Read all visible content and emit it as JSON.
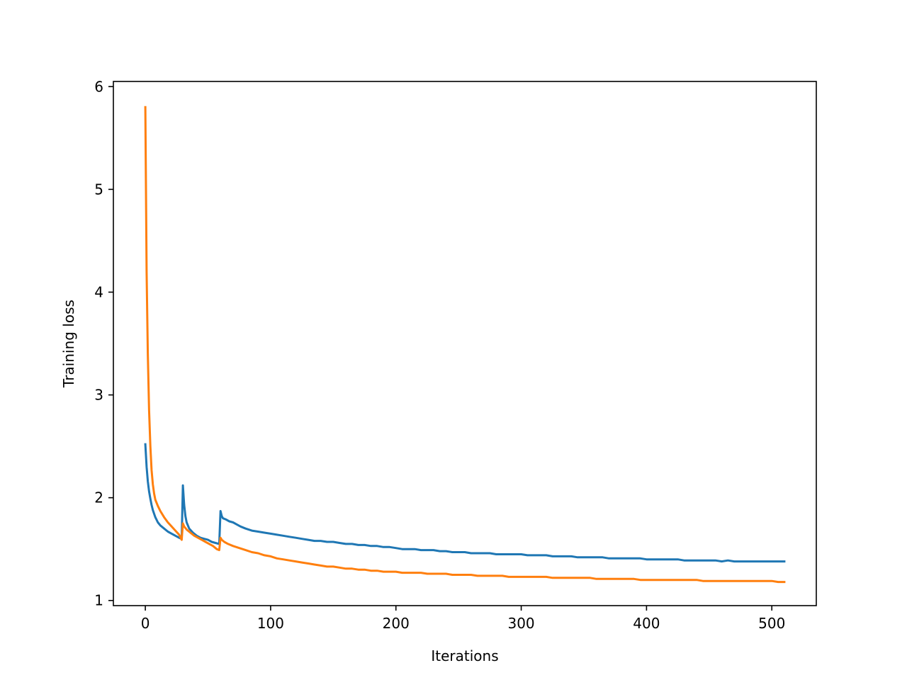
{
  "chart_data": {
    "type": "line",
    "title": "",
    "xlabel": "Iterations",
    "ylabel": "Training loss",
    "xlim": [
      -25.5,
      535.5
    ],
    "ylim": [
      0.95,
      6.05
    ],
    "xticks": [
      0,
      100,
      200,
      300,
      400,
      500
    ],
    "yticks": [
      1,
      2,
      3,
      4,
      5,
      6
    ],
    "grid": false,
    "legend": "none",
    "series": [
      {
        "color": "#1f77b4",
        "x": [
          0,
          1,
          2,
          3,
          4,
          5,
          6,
          8,
          10,
          12,
          15,
          18,
          21,
          24,
          27,
          29,
          30,
          31,
          32,
          33,
          35,
          38,
          41,
          44,
          47,
          50,
          53,
          56,
          59,
          60,
          61,
          62,
          64,
          67,
          70,
          73,
          76,
          80,
          85,
          90,
          95,
          100,
          105,
          110,
          115,
          120,
          125,
          130,
          135,
          140,
          145,
          150,
          155,
          160,
          165,
          170,
          175,
          180,
          185,
          190,
          195,
          200,
          205,
          210,
          215,
          220,
          225,
          230,
          235,
          240,
          245,
          250,
          255,
          260,
          265,
          270,
          275,
          280,
          285,
          290,
          295,
          300,
          305,
          310,
          315,
          320,
          325,
          330,
          335,
          340,
          345,
          350,
          355,
          360,
          365,
          370,
          375,
          380,
          385,
          390,
          395,
          400,
          405,
          410,
          415,
          420,
          425,
          430,
          435,
          440,
          445,
          450,
          455,
          460,
          465,
          470,
          475,
          480,
          485,
          490,
          495,
          500,
          505,
          510
        ],
        "y": [
          2.52,
          2.3,
          2.16,
          2.06,
          1.99,
          1.93,
          1.88,
          1.81,
          1.76,
          1.73,
          1.7,
          1.67,
          1.65,
          1.63,
          1.61,
          1.6,
          2.12,
          1.93,
          1.82,
          1.76,
          1.7,
          1.66,
          1.63,
          1.61,
          1.6,
          1.59,
          1.57,
          1.56,
          1.55,
          1.87,
          1.82,
          1.8,
          1.79,
          1.77,
          1.76,
          1.74,
          1.72,
          1.7,
          1.68,
          1.67,
          1.66,
          1.65,
          1.64,
          1.63,
          1.62,
          1.61,
          1.6,
          1.59,
          1.58,
          1.58,
          1.57,
          1.57,
          1.56,
          1.55,
          1.55,
          1.54,
          1.54,
          1.53,
          1.53,
          1.52,
          1.52,
          1.51,
          1.5,
          1.5,
          1.5,
          1.49,
          1.49,
          1.49,
          1.48,
          1.48,
          1.47,
          1.47,
          1.47,
          1.46,
          1.46,
          1.46,
          1.46,
          1.45,
          1.45,
          1.45,
          1.45,
          1.45,
          1.44,
          1.44,
          1.44,
          1.44,
          1.43,
          1.43,
          1.43,
          1.43,
          1.42,
          1.42,
          1.42,
          1.42,
          1.42,
          1.41,
          1.41,
          1.41,
          1.41,
          1.41,
          1.41,
          1.4,
          1.4,
          1.4,
          1.4,
          1.4,
          1.4,
          1.39,
          1.39,
          1.39,
          1.39,
          1.39,
          1.39,
          1.38,
          1.39,
          1.38,
          1.38,
          1.38,
          1.38,
          1.38,
          1.38,
          1.38,
          1.38,
          1.38
        ]
      },
      {
        "color": "#ff7f0e",
        "x": [
          0,
          1,
          2,
          3,
          4,
          5,
          6,
          7,
          8,
          10,
          12,
          15,
          18,
          21,
          24,
          27,
          29,
          30,
          31,
          33,
          36,
          39,
          42,
          45,
          48,
          51,
          54,
          57,
          59,
          60,
          61,
          63,
          66,
          70,
          75,
          80,
          85,
          90,
          95,
          100,
          105,
          110,
          115,
          120,
          125,
          130,
          135,
          140,
          145,
          150,
          155,
          160,
          165,
          170,
          175,
          180,
          185,
          190,
          195,
          200,
          205,
          210,
          215,
          220,
          225,
          230,
          235,
          240,
          245,
          250,
          255,
          260,
          265,
          270,
          275,
          280,
          285,
          290,
          295,
          300,
          305,
          310,
          315,
          320,
          325,
          330,
          335,
          340,
          345,
          350,
          355,
          360,
          365,
          370,
          375,
          380,
          385,
          390,
          395,
          400,
          405,
          410,
          415,
          420,
          425,
          430,
          435,
          440,
          445,
          450,
          455,
          460,
          465,
          470,
          475,
          480,
          485,
          490,
          495,
          500,
          505,
          510
        ],
        "y": [
          5.8,
          4.2,
          3.4,
          2.85,
          2.5,
          2.27,
          2.13,
          2.04,
          1.98,
          1.92,
          1.87,
          1.81,
          1.76,
          1.72,
          1.68,
          1.64,
          1.59,
          1.75,
          1.72,
          1.69,
          1.66,
          1.63,
          1.61,
          1.59,
          1.57,
          1.55,
          1.53,
          1.5,
          1.49,
          1.61,
          1.59,
          1.57,
          1.55,
          1.53,
          1.51,
          1.49,
          1.47,
          1.46,
          1.44,
          1.43,
          1.41,
          1.4,
          1.39,
          1.38,
          1.37,
          1.36,
          1.35,
          1.34,
          1.33,
          1.33,
          1.32,
          1.31,
          1.31,
          1.3,
          1.3,
          1.29,
          1.29,
          1.28,
          1.28,
          1.28,
          1.27,
          1.27,
          1.27,
          1.27,
          1.26,
          1.26,
          1.26,
          1.26,
          1.25,
          1.25,
          1.25,
          1.25,
          1.24,
          1.24,
          1.24,
          1.24,
          1.24,
          1.23,
          1.23,
          1.23,
          1.23,
          1.23,
          1.23,
          1.23,
          1.22,
          1.22,
          1.22,
          1.22,
          1.22,
          1.22,
          1.22,
          1.21,
          1.21,
          1.21,
          1.21,
          1.21,
          1.21,
          1.21,
          1.2,
          1.2,
          1.2,
          1.2,
          1.2,
          1.2,
          1.2,
          1.2,
          1.2,
          1.2,
          1.19,
          1.19,
          1.19,
          1.19,
          1.19,
          1.19,
          1.19,
          1.19,
          1.19,
          1.19,
          1.19,
          1.19,
          1.18,
          1.18
        ]
      }
    ]
  }
}
